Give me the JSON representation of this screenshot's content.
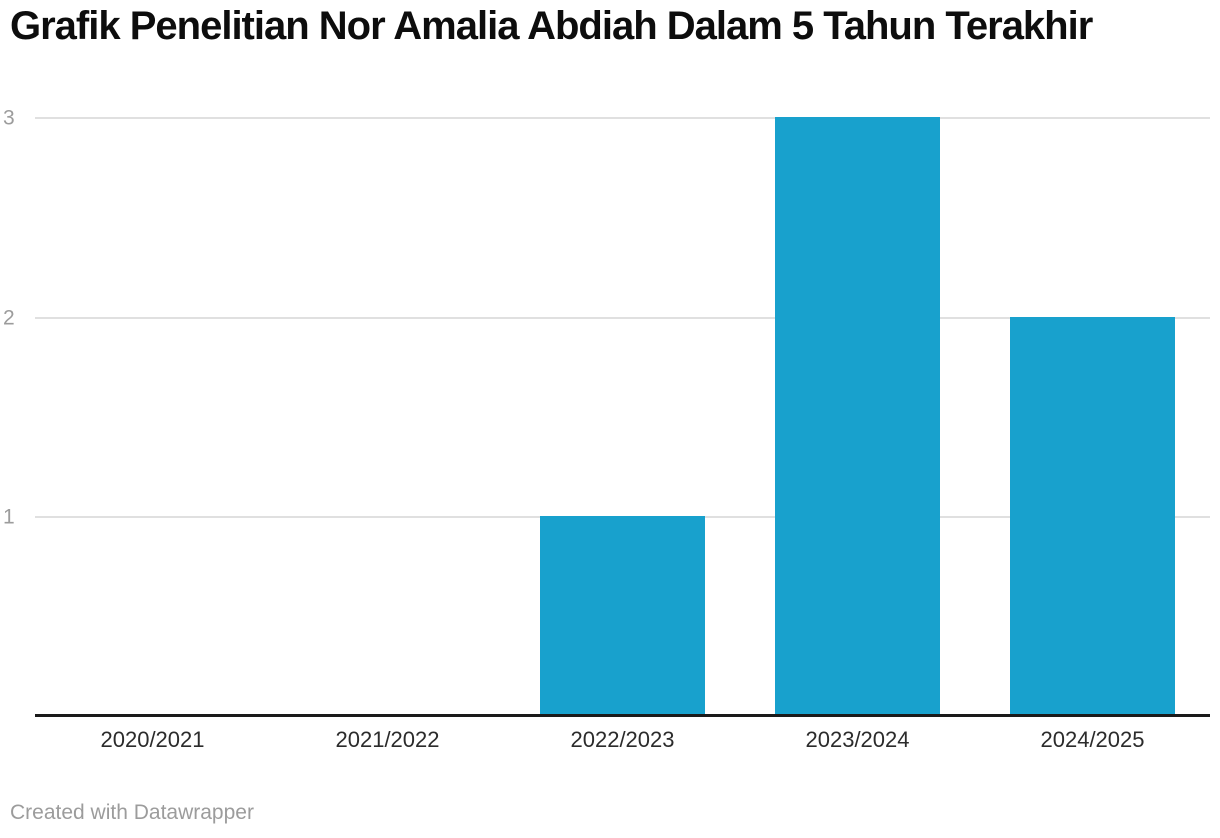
{
  "header": {
    "title": "Grafik Penelitian Nor Amalia Abdiah Dalam 5 Tahun Terakhir"
  },
  "footer": {
    "credit": "Created with Datawrapper"
  },
  "chart_data": {
    "type": "bar",
    "categories": [
      "2020/2021",
      "2021/2022",
      "2022/2023",
      "2023/2024",
      "2024/2025"
    ],
    "values": [
      0,
      0,
      1,
      3,
      2
    ],
    "title": "Grafik Penelitian Nor Amalia Abdiah Dalam 5 Tahun Terakhir",
    "xlabel": "",
    "ylabel": "",
    "ylim": [
      0,
      3
    ],
    "yticks": [
      1,
      2,
      3
    ],
    "grid": true,
    "legend": false,
    "bar_width_fraction": 0.7
  },
  "colors": {
    "bar": "#18a1cd",
    "grid": "#e0e0e0",
    "axis_line": "#1a1a1a",
    "y_tick_label": "#9c9c9c",
    "x_tick_label": "#2b2b2b",
    "title": "#0d0d0d",
    "footer": "#9c9c9c"
  }
}
